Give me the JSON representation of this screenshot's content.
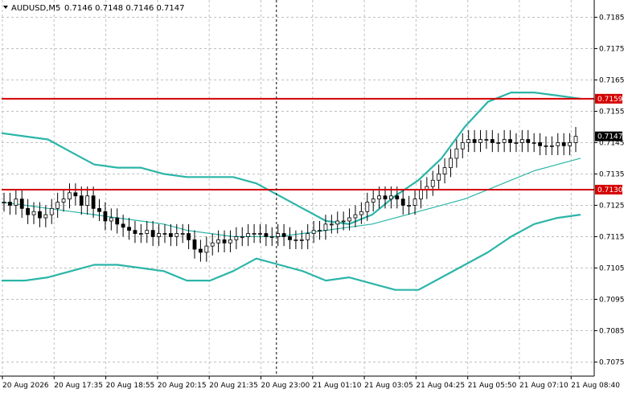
{
  "header": {
    "symbol": "AUDUSD,M5",
    "ohlc": "0.7146 0.7148 0.7146 0.7147"
  },
  "colors": {
    "band": "#2bb5a8",
    "level": "#d40000",
    "grid": "#c0c0c0",
    "candle": "#000000"
  },
  "chart_data": {
    "type": "candlestick",
    "ylim": [
      0.70705,
      0.71905
    ],
    "y_ticks": [
      "0.7185",
      "0.7175",
      "0.7165",
      "0.7155",
      "0.7145",
      "0.7135",
      "0.7125",
      "0.7115",
      "0.7105",
      "0.7095",
      "0.7085",
      "0.7075"
    ],
    "x_ticks": [
      "20 Aug 2026",
      "20 Aug 17:35",
      "20 Aug 18:55",
      "20 Aug 20:15",
      "20 Aug 21:35",
      "20 Aug 23:00",
      "21 Aug 01:10",
      "21 Aug 03:05",
      "21 Aug 04:25",
      "21 Aug 05:50",
      "21 Aug 07:10",
      "21 Aug 08:40"
    ],
    "levels": [
      {
        "value": 0.7159,
        "label": "0.7159"
      },
      {
        "value": 0.713,
        "label": "0.7130"
      }
    ],
    "current_price": {
      "value": 0.7147,
      "label": "0.7147"
    },
    "session_separator_x_index": 5.3,
    "closes": [
      0.7126,
      0.7125,
      0.7127,
      0.7124,
      0.7122,
      0.7123,
      0.7121,
      0.7122,
      0.7124,
      0.7126,
      0.7127,
      0.7129,
      0.7128,
      0.7125,
      0.7128,
      0.7124,
      0.7123,
      0.712,
      0.7121,
      0.7119,
      0.7118,
      0.7117,
      0.7116,
      0.7116,
      0.7117,
      0.7115,
      0.7116,
      0.7116,
      0.7115,
      0.7116,
      0.7116,
      0.7114,
      0.7111,
      0.711,
      0.7112,
      0.7113,
      0.7114,
      0.7113,
      0.7114,
      0.7115,
      0.7115,
      0.7116,
      0.7116,
      0.7116,
      0.7115,
      0.7115,
      0.7116,
      0.7115,
      0.7114,
      0.7114,
      0.7114,
      0.7116,
      0.7117,
      0.7117,
      0.7119,
      0.7119,
      0.712,
      0.712,
      0.7121,
      0.7122,
      0.7123,
      0.7126,
      0.7127,
      0.7128,
      0.7127,
      0.7128,
      0.7127,
      0.7125,
      0.7125,
      0.7127,
      0.713,
      0.7131,
      0.7133,
      0.7135,
      0.7137,
      0.714,
      0.7143,
      0.7145,
      0.7146,
      0.7145,
      0.7146,
      0.7146,
      0.7145,
      0.7145,
      0.7146,
      0.7145,
      0.7145,
      0.7146,
      0.7145,
      0.7145,
      0.7144,
      0.7144,
      0.7144,
      0.7145,
      0.7144,
      0.7145,
      0.7147
    ],
    "upper_band": [
      0.7148,
      0.7147,
      0.7146,
      0.7142,
      0.7138,
      0.7137,
      0.7137,
      0.7135,
      0.7134,
      0.7134,
      0.7134,
      0.7132,
      0.7128,
      0.7124,
      0.712,
      0.7119,
      0.7122,
      0.7128,
      0.7133,
      0.714,
      0.715,
      0.7158,
      0.7161,
      0.7161,
      0.716,
      0.7159
    ],
    "middle_band": [
      0.7126,
      0.7125,
      0.7124,
      0.7123,
      0.7122,
      0.7121,
      0.712,
      0.7119,
      0.7117,
      0.7116,
      0.7115,
      0.7115,
      0.7115,
      0.7116,
      0.7117,
      0.7118,
      0.7119,
      0.7121,
      0.7123,
      0.7125,
      0.7127,
      0.713,
      0.7133,
      0.7136,
      0.7138,
      0.714
    ],
    "lower_band": [
      0.7101,
      0.7101,
      0.7102,
      0.7104,
      0.7106,
      0.7106,
      0.7105,
      0.7104,
      0.7101,
      0.7101,
      0.7104,
      0.7108,
      0.7106,
      0.7104,
      0.7101,
      0.7102,
      0.71,
      0.7098,
      0.7098,
      0.7102,
      0.7106,
      0.711,
      0.7115,
      0.7119,
      0.7121,
      0.7122
    ]
  }
}
